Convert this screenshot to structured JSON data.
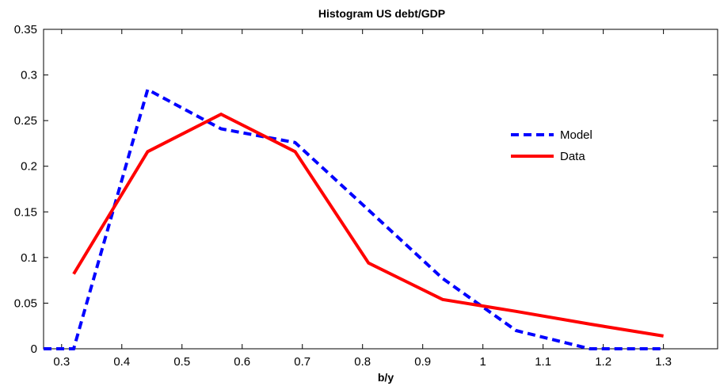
{
  "chart_data": {
    "type": "line",
    "title": "Histogram US debt/GDP",
    "xlabel": "b/y",
    "ylabel": "",
    "xlim": [
      0.27,
      1.39
    ],
    "ylim": [
      0,
      0.35
    ],
    "xticks": [
      0.3,
      0.4,
      0.5,
      0.6,
      0.7,
      0.8,
      0.9,
      1,
      1.1,
      1.2,
      1.3
    ],
    "xtick_labels": [
      "0.3",
      "0.4",
      "0.5",
      "0.6",
      "0.7",
      "0.8",
      "0.9",
      "1",
      "1.1",
      "1.2",
      "1.3"
    ],
    "yticks": [
      0,
      0.05,
      0.1,
      0.15,
      0.2,
      0.25,
      0.3,
      0.35
    ],
    "ytick_labels": [
      "0",
      "0.05",
      "0.1",
      "0.15",
      "0.2",
      "0.25",
      "0.3",
      "0.35"
    ],
    "grid": false,
    "legend_position": "upper-right",
    "series": [
      {
        "name": "Model",
        "color": "#0000ff",
        "style": "dashed",
        "x": [
          0.27,
          0.32,
          0.443,
          0.565,
          0.688,
          0.81,
          0.933,
          1.055,
          1.178,
          1.3
        ],
        "y": [
          0,
          0,
          0.284,
          0.241,
          0.226,
          0.152,
          0.077,
          0.02,
          0,
          0
        ]
      },
      {
        "name": "Data",
        "color": "#ff0000",
        "style": "solid",
        "x": [
          0.32,
          0.443,
          0.565,
          0.688,
          0.81,
          0.933,
          1.055,
          1.178,
          1.3
        ],
        "y": [
          0.082,
          0.216,
          0.257,
          0.216,
          0.094,
          0.054,
          0.041,
          0.027,
          0.014
        ]
      }
    ]
  }
}
